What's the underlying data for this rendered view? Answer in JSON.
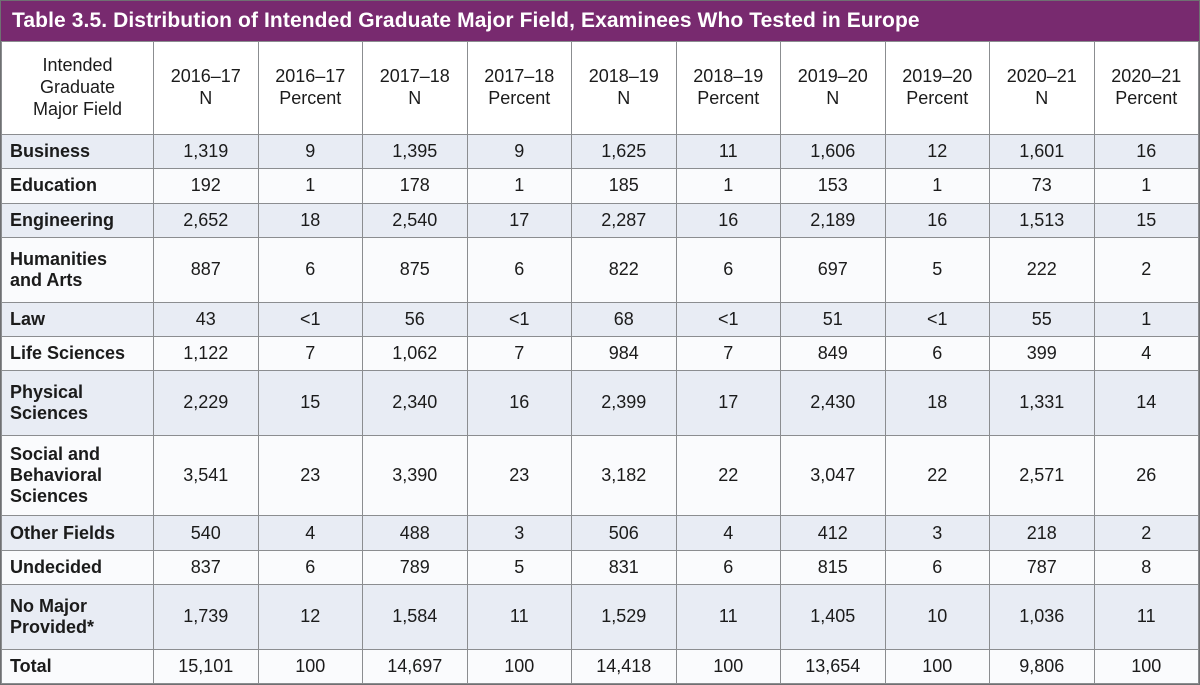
{
  "title": "Table 3.5. Distribution of Intended Graduate Major Field, Examinees Who Tested in Europe",
  "colors": {
    "title_bar_bg": "#782a6f",
    "title_text": "#ffffff",
    "row_alt_bg": "#e8ecf4",
    "row_bg": "#fafbfd",
    "grid_border": "#8b8d90",
    "outer_border": "#6f7072",
    "cell_text": "#1b1b1b"
  },
  "table": {
    "row_header_label": "Intended\nGraduate\nMajor Field",
    "columns": [
      "2016–17\nN",
      "2016–17\nPercent",
      "2017–18\nN",
      "2017–18\nPercent",
      "2018–19\nN",
      "2018–19\nPercent",
      "2019–20\nN",
      "2019–20\nPercent",
      "2020–21\nN",
      "2020–21\nPercent"
    ],
    "rows": [
      {
        "label": "Business",
        "values": [
          "1,319",
          "9",
          "1,395",
          "9",
          "1,625",
          "11",
          "1,606",
          "12",
          "1,601",
          "16"
        ]
      },
      {
        "label": "Education",
        "values": [
          "192",
          "1",
          "178",
          "1",
          "185",
          "1",
          "153",
          "1",
          "73",
          "1"
        ]
      },
      {
        "label": "Engineering",
        "values": [
          "2,652",
          "18",
          "2,540",
          "17",
          "2,287",
          "16",
          "2,189",
          "16",
          "1,513",
          "15"
        ]
      },
      {
        "label": "Humanities\nand Arts",
        "values": [
          "887",
          "6",
          "875",
          "6",
          "822",
          "6",
          "697",
          "5",
          "222",
          "2"
        ]
      },
      {
        "label": "Law",
        "values": [
          "43",
          "<1",
          "56",
          "<1",
          "68",
          "<1",
          "51",
          "<1",
          "55",
          "1"
        ]
      },
      {
        "label": "Life Sciences",
        "values": [
          "1,122",
          "7",
          "1,062",
          "7",
          "984",
          "7",
          "849",
          "6",
          "399",
          "4"
        ]
      },
      {
        "label": "Physical\nSciences",
        "values": [
          "2,229",
          "15",
          "2,340",
          "16",
          "2,399",
          "17",
          "2,430",
          "18",
          "1,331",
          "14"
        ]
      },
      {
        "label": "Social and\nBehavioral\nSciences",
        "values": [
          "3,541",
          "23",
          "3,390",
          "23",
          "3,182",
          "22",
          "3,047",
          "22",
          "2,571",
          "26"
        ]
      },
      {
        "label": "Other Fields",
        "values": [
          "540",
          "4",
          "488",
          "3",
          "506",
          "4",
          "412",
          "3",
          "218",
          "2"
        ]
      },
      {
        "label": "Undecided",
        "values": [
          "837",
          "6",
          "789",
          "5",
          "831",
          "6",
          "815",
          "6",
          "787",
          "8"
        ]
      },
      {
        "label": "No Major\nProvided*",
        "values": [
          "1,739",
          "12",
          "1,584",
          "11",
          "1,529",
          "11",
          "1,405",
          "10",
          "1,036",
          "11"
        ]
      },
      {
        "label": "Total",
        "values": [
          "15,101",
          "100",
          "14,697",
          "100",
          "14,418",
          "100",
          "13,654",
          "100",
          "9,806",
          "100"
        ]
      }
    ]
  }
}
